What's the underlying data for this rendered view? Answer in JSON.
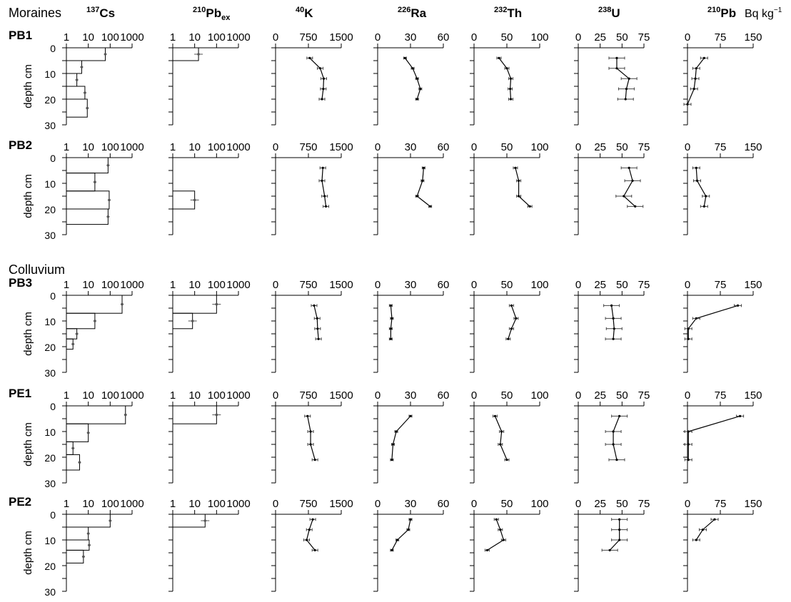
{
  "groups": [
    {
      "label": "Moraines",
      "profiles": [
        "PB1",
        "PB2"
      ]
    },
    {
      "label": "Colluvium",
      "profiles": [
        "PB3",
        "PE1",
        "PE2"
      ]
    }
  ],
  "unit_label": "Bq kg",
  "unit_exponent": "−1",
  "depth_axis": {
    "label": "depth cm",
    "ticks": [
      0,
      10,
      20,
      30
    ],
    "ylim": [
      0,
      30
    ]
  },
  "columns": [
    {
      "key": "cs",
      "sup": "137",
      "element": "Cs",
      "sub": "",
      "tick_labels": [
        "1",
        "10",
        "100",
        "1000"
      ]
    },
    {
      "key": "pbex",
      "sup": "210",
      "element": "Pb",
      "sub": "ex",
      "tick_labels": [
        "1",
        "10",
        "100",
        "1000"
      ]
    },
    {
      "key": "k",
      "sup": "40",
      "element": "K",
      "sub": "",
      "tick_labels": [
        "0",
        "750",
        "1500"
      ]
    },
    {
      "key": "ra",
      "sup": "226",
      "element": "Ra",
      "sub": "",
      "tick_labels": [
        "0",
        "30",
        "60"
      ]
    },
    {
      "key": "th",
      "sup": "232",
      "element": "Th",
      "sub": "",
      "tick_labels": [
        "0",
        "50",
        "100"
      ]
    },
    {
      "key": "u",
      "sup": "238",
      "element": "U",
      "sub": "",
      "tick_labels": [
        "0",
        "25",
        "50",
        "75"
      ]
    },
    {
      "key": "pb",
      "sup": "210",
      "element": "Pb",
      "sub": "",
      "tick_labels": [
        "0",
        "75",
        "150"
      ]
    }
  ],
  "chart_data": [
    {
      "profile": "PB1",
      "type": "line",
      "cs": [
        [
          0,
          5,
          60
        ],
        [
          5,
          10,
          5
        ],
        [
          10,
          15,
          3
        ],
        [
          15,
          20,
          7
        ],
        [
          20,
          27,
          9
        ]
      ],
      "pbex": [
        [
          0,
          5,
          15
        ]
      ],
      "k": [
        [
          4,
          780
        ],
        [
          8,
          1020
        ],
        [
          12,
          1100
        ],
        [
          16,
          1090
        ],
        [
          20,
          1060
        ]
      ],
      "ra": [
        [
          4,
          25
        ],
        [
          8,
          32
        ],
        [
          12,
          36
        ],
        [
          16,
          39
        ],
        [
          20,
          36
        ]
      ],
      "th": [
        [
          4,
          38
        ],
        [
          8,
          50
        ],
        [
          12,
          56
        ],
        [
          16,
          55
        ],
        [
          20,
          56
        ]
      ],
      "u": [
        [
          4,
          44
        ],
        [
          8,
          44
        ],
        [
          12,
          58
        ],
        [
          16,
          55
        ],
        [
          20,
          54
        ]
      ],
      "pb": [
        [
          4,
          38
        ],
        [
          8,
          20
        ],
        [
          12,
          18
        ],
        [
          16,
          15
        ],
        [
          22,
          0
        ]
      ]
    },
    {
      "profile": "PB2",
      "type": "line",
      "cs": [
        [
          0,
          6,
          80
        ],
        [
          6,
          13,
          20
        ],
        [
          13,
          20,
          90
        ],
        [
          20,
          26,
          80
        ]
      ],
      "pbex": [
        [
          13,
          20,
          10
        ]
      ],
      "k": [
        [
          4,
          1080
        ],
        [
          9,
          1060
        ],
        [
          15,
          1120
        ],
        [
          19,
          1150
        ]
      ],
      "ra": [
        [
          4,
          42
        ],
        [
          9,
          41
        ],
        [
          15,
          36
        ],
        [
          19,
          48
        ]
      ],
      "th": [
        [
          4,
          63
        ],
        [
          9,
          68
        ],
        [
          15,
          68
        ],
        [
          19,
          85
        ]
      ],
      "u": [
        [
          4,
          58
        ],
        [
          9,
          62
        ],
        [
          15,
          52
        ],
        [
          19,
          65
        ]
      ],
      "pb": [
        [
          4,
          20
        ],
        [
          9,
          22
        ],
        [
          15,
          42
        ],
        [
          19,
          38
        ]
      ]
    },
    {
      "profile": "PB3",
      "type": "line",
      "cs": [
        [
          0,
          7,
          350
        ],
        [
          7,
          13,
          20
        ],
        [
          13,
          17,
          3
        ],
        [
          17,
          21,
          2
        ]
      ],
      "pbex": [
        [
          0,
          7,
          100
        ],
        [
          7,
          13,
          8
        ]
      ],
      "k": [
        [
          4,
          880
        ],
        [
          9,
          950
        ],
        [
          13,
          960
        ],
        [
          17,
          980
        ]
      ],
      "ra": [
        [
          4,
          12
        ],
        [
          9,
          13
        ],
        [
          13,
          12
        ],
        [
          17,
          12
        ]
      ],
      "th": [
        [
          4,
          57
        ],
        [
          9,
          64
        ],
        [
          13,
          57
        ],
        [
          17,
          52
        ]
      ],
      "u": [
        [
          4,
          38
        ],
        [
          9,
          40
        ],
        [
          13,
          41
        ],
        [
          17,
          40
        ]
      ],
      "pb": [
        [
          4,
          115
        ],
        [
          9,
          20
        ],
        [
          13,
          2
        ],
        [
          17,
          2
        ]
      ]
    },
    {
      "profile": "PE1",
      "type": "line",
      "cs": [
        [
          0,
          7,
          500
        ],
        [
          7,
          14,
          10
        ],
        [
          14,
          19,
          2
        ],
        [
          19,
          25,
          4
        ]
      ],
      "pbex": [
        [
          0,
          7,
          100
        ]
      ],
      "k": [
        [
          4,
          730
        ],
        [
          10,
          800
        ],
        [
          15,
          800
        ],
        [
          21,
          900
        ]
      ],
      "ra": [
        [
          4,
          30
        ],
        [
          10,
          17
        ],
        [
          15,
          14
        ],
        [
          21,
          13
        ]
      ],
      "th": [
        [
          4,
          32
        ],
        [
          10,
          42
        ],
        [
          15,
          40
        ],
        [
          21,
          50
        ]
      ],
      "u": [
        [
          4,
          47
        ],
        [
          10,
          40
        ],
        [
          15,
          40
        ],
        [
          21,
          44
        ]
      ],
      "pb": [
        [
          4,
          120
        ],
        [
          10,
          2
        ],
        [
          15,
          2
        ],
        [
          21,
          2
        ]
      ]
    },
    {
      "profile": "PE2",
      "type": "line",
      "cs": [
        [
          0,
          5,
          100
        ],
        [
          5,
          10,
          10
        ],
        [
          10,
          14,
          11
        ],
        [
          14,
          19,
          6
        ]
      ],
      "pbex": [
        [
          0,
          5,
          30
        ]
      ],
      "k": [
        [
          2,
          850
        ],
        [
          6,
          770
        ],
        [
          10,
          710
        ],
        [
          14,
          900
        ]
      ],
      "ra": [
        [
          2,
          30
        ],
        [
          6,
          28
        ],
        [
          10,
          18
        ],
        [
          14,
          13
        ]
      ],
      "th": [
        [
          2,
          34
        ],
        [
          6,
          40
        ],
        [
          10,
          45
        ],
        [
          14,
          20
        ]
      ],
      "u": [
        [
          2,
          47
        ],
        [
          6,
          47
        ],
        [
          10,
          47
        ],
        [
          14,
          36
        ]
      ],
      "pb": [
        [
          2,
          62
        ],
        [
          6,
          35
        ],
        [
          10,
          20
        ]
      ]
    }
  ]
}
